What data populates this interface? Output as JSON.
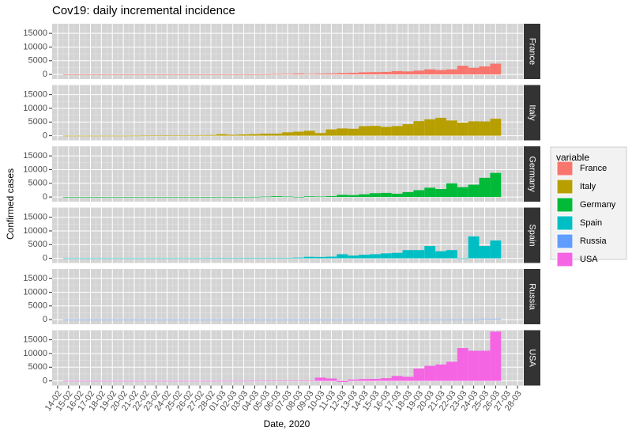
{
  "chart_data": {
    "type": "bar",
    "title": "Cov19: daily incremental incidence",
    "x_label": "Date, 2020",
    "y_label": "Confirmed cases",
    "legend_title": "variable",
    "legend_position": "right",
    "grid": true,
    "categories": [
      "14-02",
      "15-02",
      "16-02",
      "17-02",
      "18-02",
      "19-02",
      "20-02",
      "21-02",
      "22-02",
      "23-02",
      "24-02",
      "25-02",
      "26-02",
      "27-02",
      "28-02",
      "01-03",
      "02-03",
      "03-03",
      "04-03",
      "05-03",
      "06-03",
      "07-03",
      "08-03",
      "09-03",
      "10-03",
      "11-03",
      "12-03",
      "13-03",
      "14-03",
      "15-03",
      "16-03",
      "17-03",
      "18-03",
      "19-03",
      "20-03",
      "21-03",
      "22-03",
      "23-03",
      "24-03",
      "25-03",
      "26-03",
      "27-03",
      "28-03"
    ],
    "ylim": [
      -1700,
      18500
    ],
    "yticks": [
      0,
      5000,
      10000,
      15000
    ],
    "series": [
      {
        "name": "France",
        "color": "#F8766D",
        "values": [
          null,
          0,
          0,
          0,
          0,
          0,
          0,
          0,
          0,
          0,
          0,
          2,
          4,
          20,
          19,
          43,
          30,
          61,
          21,
          73,
          138,
          190,
          336,
          177,
          286,
          372,
          497,
          595,
          785,
          838,
          924,
          1210,
          1097,
          1404,
          1861,
          1617,
          1847,
          3176,
          2446,
          2931,
          3922,
          null,
          null
        ]
      },
      {
        "name": "Italy",
        "color": "#B79F00",
        "values": [
          null,
          0,
          0,
          0,
          0,
          0,
          0,
          17,
          42,
          93,
          74,
          93,
          131,
          202,
          240,
          561,
          347,
          466,
          587,
          769,
          778,
          1247,
          1492,
          1797,
          977,
          2313,
          2651,
          2547,
          3497,
          3590,
          3233,
          3526,
          4207,
          5322,
          5986,
          6557,
          5560,
          4789,
          5249,
          5210,
          6203,
          null,
          null
        ]
      },
      {
        "name": "Germany",
        "color": "#00BA38",
        "values": [
          null,
          0,
          0,
          0,
          0,
          0,
          0,
          0,
          0,
          0,
          0,
          0,
          1,
          10,
          19,
          50,
          30,
          40,
          70,
          140,
          280,
          160,
          60,
          240,
          160,
          300,
          800,
          700,
          1000,
          1400,
          1500,
          1200,
          1800,
          2500,
          3400,
          2900,
          5000,
          3600,
          4500,
          7000,
          8800,
          null,
          null
        ]
      },
      {
        "name": "Spain",
        "color": "#00BFC4",
        "values": [
          null,
          0,
          0,
          0,
          0,
          0,
          0,
          0,
          0,
          0,
          0,
          0,
          2,
          4,
          20,
          40,
          30,
          50,
          60,
          90,
          120,
          100,
          270,
          550,
          500,
          600,
          1500,
          1000,
          1300,
          1500,
          1800,
          2000,
          3000,
          3000,
          4500,
          2600,
          3000,
          0,
          8000,
          4500,
          6500,
          null,
          null
        ]
      },
      {
        "name": "Russia",
        "color": "#619CFF",
        "values": [
          null,
          0,
          0,
          0,
          0,
          0,
          0,
          0,
          0,
          0,
          0,
          0,
          0,
          0,
          0,
          0,
          1,
          0,
          1,
          0,
          0,
          7,
          0,
          3,
          3,
          8,
          6,
          14,
          18,
          4,
          30,
          54,
          33,
          52,
          54,
          53,
          62,
          71,
          57,
          163,
          182,
          null,
          null
        ]
      },
      {
        "name": "USA",
        "color": "#F564E3",
        "values": [
          null,
          0,
          0,
          0,
          0,
          0,
          0,
          0,
          0,
          0,
          0,
          0,
          0,
          1,
          0,
          10,
          20,
          20,
          50,
          60,
          80,
          110,
          110,
          170,
          1200,
          900,
          -400,
          500,
          700,
          750,
          1000,
          1800,
          1500,
          4500,
          5500,
          6000,
          7000,
          12000,
          11000,
          11000,
          18000,
          null,
          null
        ]
      }
    ]
  }
}
